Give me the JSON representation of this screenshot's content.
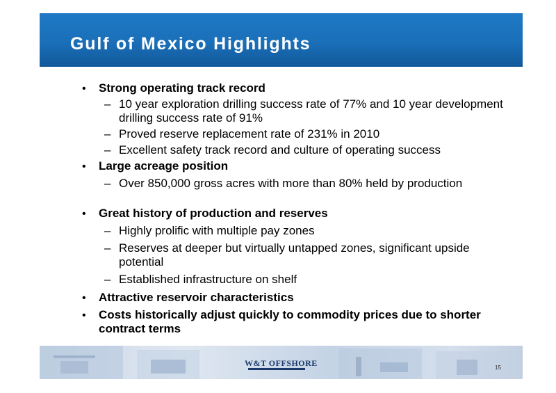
{
  "slide": {
    "title": "Gulf of Mexico Highlights",
    "bullet_glyph": "•",
    "dash_glyph": "–",
    "sections": [
      {
        "heading": "Strong operating track record",
        "items": [
          "10 year exploration drilling success rate of 77% and 10 year development drilling success rate of 91%",
          "Proved reserve replacement rate of 231% in 2010",
          "Excellent safety track record and culture of operating success"
        ]
      },
      {
        "heading": "Large acreage position",
        "items": [
          "Over 850,000 gross acres with more than 80% held by production"
        ]
      },
      {
        "heading": "Great history of production and reserves",
        "items": [
          "Highly prolific with multiple pay zones",
          "Reserves at deeper but virtually untapped zones, significant upside potential",
          "Established infrastructure on shelf"
        ]
      },
      {
        "heading": "Attractive reservoir characteristics",
        "items": []
      },
      {
        "heading": "Costs historically adjust quickly to commodity prices due to shorter contract terms",
        "items": []
      }
    ],
    "footer": {
      "logo_text": "W&T OFFSHORE",
      "page_number": "15"
    }
  },
  "colors": {
    "header_blue": "#1a6fb8",
    "text": "#000000",
    "logo": "#1b3a6b"
  }
}
